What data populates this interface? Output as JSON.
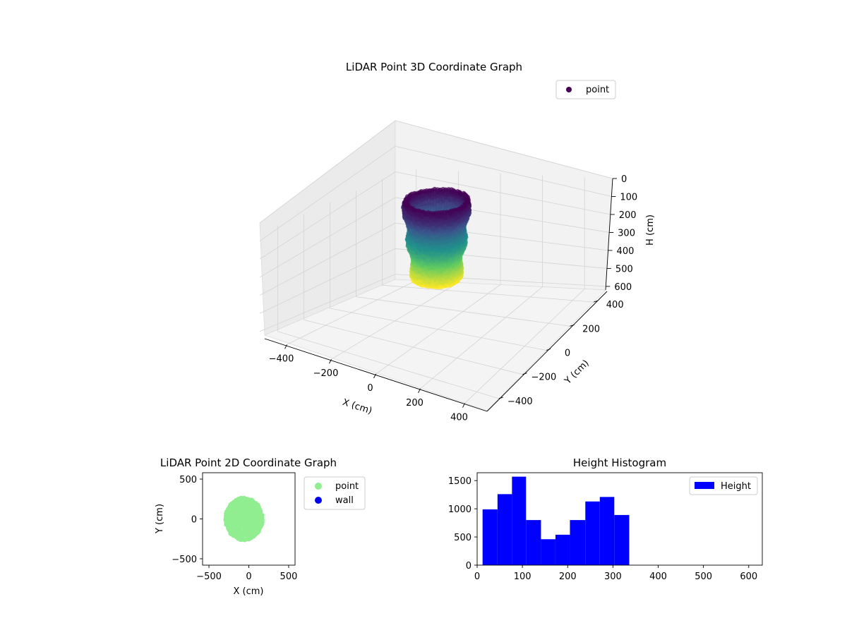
{
  "chart_data": [
    {
      "type": "scatter3d",
      "title": "LiDAR Point 3D Coordinate Graph",
      "xlabel": "X (cm)",
      "ylabel": "Y (cm)",
      "zlabel": "H (cm)",
      "xlim": [
        -500,
        500
      ],
      "ylim": [
        -500,
        500
      ],
      "zlim": [
        0,
        620
      ],
      "z_inverted": true,
      "x_ticks": [
        "−400",
        "−200",
        "0",
        "200",
        "400"
      ],
      "y_ticks": [
        "−400",
        "−200",
        "0",
        "200",
        "400"
      ],
      "z_ticks": [
        "0",
        "100",
        "200",
        "300",
        "400",
        "500",
        "600"
      ],
      "legend": {
        "placement": "top-right",
        "entries": [
          {
            "label": "point",
            "color": "#440154"
          }
        ]
      },
      "colormap": "viridis",
      "grid": true,
      "series": [
        {
          "name": "point",
          "shape": "ring",
          "center": [
            -60,
            0
          ],
          "radius": 230,
          "height_range": [
            10,
            340
          ]
        }
      ]
    },
    {
      "type": "scatter",
      "title": "LiDAR Point 2D Coordinate Graph",
      "xlabel": "X (cm)",
      "ylabel": "Y (cm)",
      "xlim": [
        -580,
        580
      ],
      "ylim": [
        -580,
        580
      ],
      "x_ticks": [
        "−500",
        "0",
        "500"
      ],
      "y_ticks": [
        "500",
        "0",
        "−500"
      ],
      "legend": {
        "placement": "outside-right",
        "entries": [
          {
            "label": "point",
            "color": "#90ee90"
          },
          {
            "label": "wall",
            "color": "#0000ee"
          }
        ]
      },
      "series": [
        {
          "name": "point",
          "color": "#90ee90",
          "center": [
            -60,
            0
          ],
          "radius_x": 230,
          "radius_y": 260
        }
      ]
    },
    {
      "type": "bar",
      "title": "Height Histogram",
      "xlim": [
        0,
        630
      ],
      "ylim": [
        0,
        1640
      ],
      "x_ticks": [
        "0",
        "100",
        "200",
        "300",
        "400",
        "500",
        "600"
      ],
      "y_ticks": [
        "0",
        "500",
        "1000",
        "1500"
      ],
      "legend": {
        "placement": "top-right",
        "entries": [
          {
            "label": "Height",
            "color": "#0000ff"
          }
        ]
      },
      "series": [
        {
          "name": "Height",
          "color": "#0000ff",
          "bins": [
            [
              12,
              45
            ],
            [
              45,
              77
            ],
            [
              77,
              108
            ],
            [
              108,
              141
            ],
            [
              141,
              173
            ],
            [
              173,
              205
            ],
            [
              205,
              239
            ],
            [
              239,
              271
            ],
            [
              271,
              303
            ],
            [
              303,
              336
            ]
          ],
          "values": [
            990,
            1260,
            1570,
            800,
            460,
            540,
            800,
            1130,
            1210,
            890
          ]
        }
      ]
    }
  ]
}
